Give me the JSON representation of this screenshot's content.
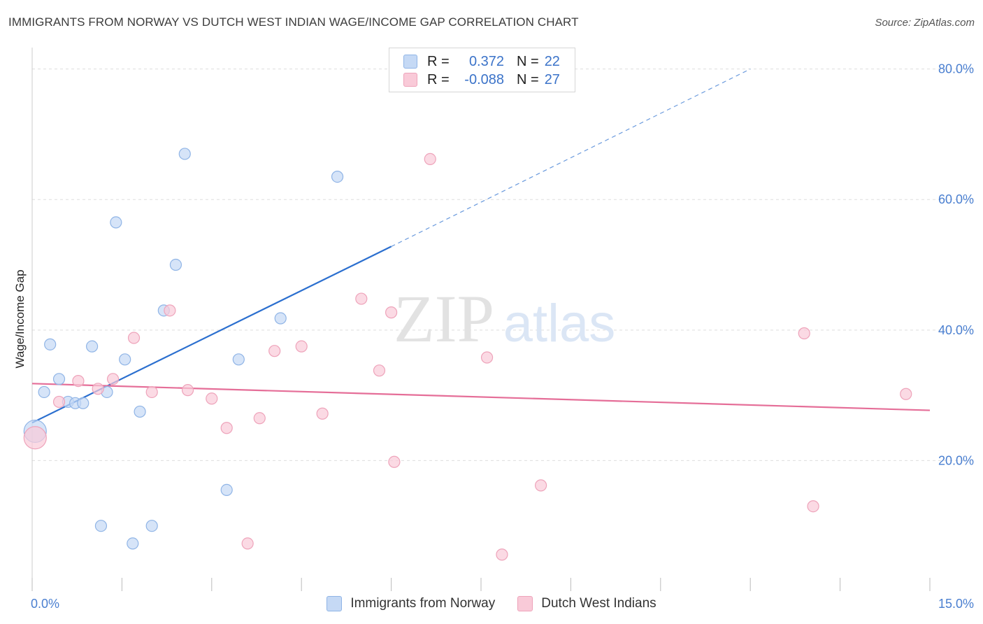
{
  "title": "IMMIGRANTS FROM NORWAY VS DUTCH WEST INDIAN WAGE/INCOME GAP CORRELATION CHART",
  "source": "Source: ZipAtlas.com",
  "watermark": {
    "zip": "ZIP",
    "atlas": "atlas"
  },
  "legend": {
    "rows": [
      {
        "r_label": "R =",
        "r_value": "0.372",
        "n_label": "N =",
        "n_value": "22"
      },
      {
        "r_label": "R =",
        "r_value": "-0.088",
        "n_label": "N =",
        "n_value": "27"
      }
    ]
  },
  "bottom_legend": [
    {
      "label": "Immigrants from Norway"
    },
    {
      "label": "Dutch West Indians"
    }
  ],
  "colors": {
    "blue_fill": "#c5d9f5",
    "blue_stroke": "#8fb4e6",
    "blue_line": "#2b6fcf",
    "pink_fill": "#f9cad8",
    "pink_stroke": "#eea3ba",
    "pink_line": "#e56e98",
    "grid": "#dddddd",
    "axis_text": "#4a7fd0"
  },
  "chart_data": {
    "type": "scatter",
    "title": "IMMIGRANTS FROM NORWAY VS DUTCH WEST INDIAN WAGE/INCOME GAP CORRELATION CHART",
    "xlabel": "",
    "ylabel": "Wage/Income Gap",
    "xlim": [
      0,
      15
    ],
    "ylim": [
      0,
      82
    ],
    "x_tick_labels": [
      "0.0%",
      "15.0%"
    ],
    "y_ticks": [
      20,
      40,
      60,
      80
    ],
    "y_tick_labels": [
      "20.0%",
      "40.0%",
      "60.0%",
      "80.0%"
    ],
    "grid": true,
    "legend_position": "top-center",
    "series": [
      {
        "name": "Immigrants from Norway",
        "color": "blue",
        "points": [
          [
            0.05,
            24.5
          ],
          [
            0.2,
            30.5
          ],
          [
            0.3,
            37.8
          ],
          [
            0.45,
            32.5
          ],
          [
            0.6,
            29.0
          ],
          [
            0.72,
            28.8
          ],
          [
            0.85,
            28.8
          ],
          [
            1.0,
            37.5
          ],
          [
            1.15,
            10.0
          ],
          [
            1.25,
            30.5
          ],
          [
            1.4,
            56.5
          ],
          [
            1.55,
            35.5
          ],
          [
            1.68,
            7.3
          ],
          [
            1.8,
            27.5
          ],
          [
            2.0,
            10.0
          ],
          [
            2.2,
            43.0
          ],
          [
            2.4,
            50.0
          ],
          [
            2.55,
            67.0
          ],
          [
            3.25,
            15.5
          ],
          [
            3.45,
            35.5
          ],
          [
            4.15,
            41.8
          ],
          [
            5.1,
            63.5
          ]
        ],
        "trend": {
          "x": [
            0.0,
            6.0
          ],
          "y": [
            25.8,
            52.8
          ],
          "dashed_to": [
            12.0,
            80.0
          ]
        }
      },
      {
        "name": "Dutch West Indians",
        "color": "pink",
        "points": [
          [
            0.05,
            23.5
          ],
          [
            0.45,
            29.0
          ],
          [
            0.77,
            32.2
          ],
          [
            1.1,
            31.0
          ],
          [
            1.35,
            32.5
          ],
          [
            1.7,
            38.8
          ],
          [
            2.0,
            30.5
          ],
          [
            2.3,
            43.0
          ],
          [
            2.6,
            30.8
          ],
          [
            3.0,
            29.5
          ],
          [
            3.25,
            25.0
          ],
          [
            3.8,
            26.5
          ],
          [
            3.6,
            7.3
          ],
          [
            4.05,
            36.8
          ],
          [
            4.5,
            37.5
          ],
          [
            4.85,
            27.2
          ],
          [
            5.5,
            44.8
          ],
          [
            5.8,
            33.8
          ],
          [
            6.0,
            42.7
          ],
          [
            6.05,
            19.8
          ],
          [
            6.65,
            66.2
          ],
          [
            7.6,
            35.8
          ],
          [
            7.85,
            5.6
          ],
          [
            8.5,
            16.2
          ],
          [
            12.9,
            39.5
          ],
          [
            13.05,
            13.0
          ],
          [
            14.6,
            30.2
          ]
        ],
        "trend": {
          "x": [
            0.0,
            15.0
          ],
          "y": [
            31.8,
            27.7
          ]
        }
      }
    ]
  }
}
